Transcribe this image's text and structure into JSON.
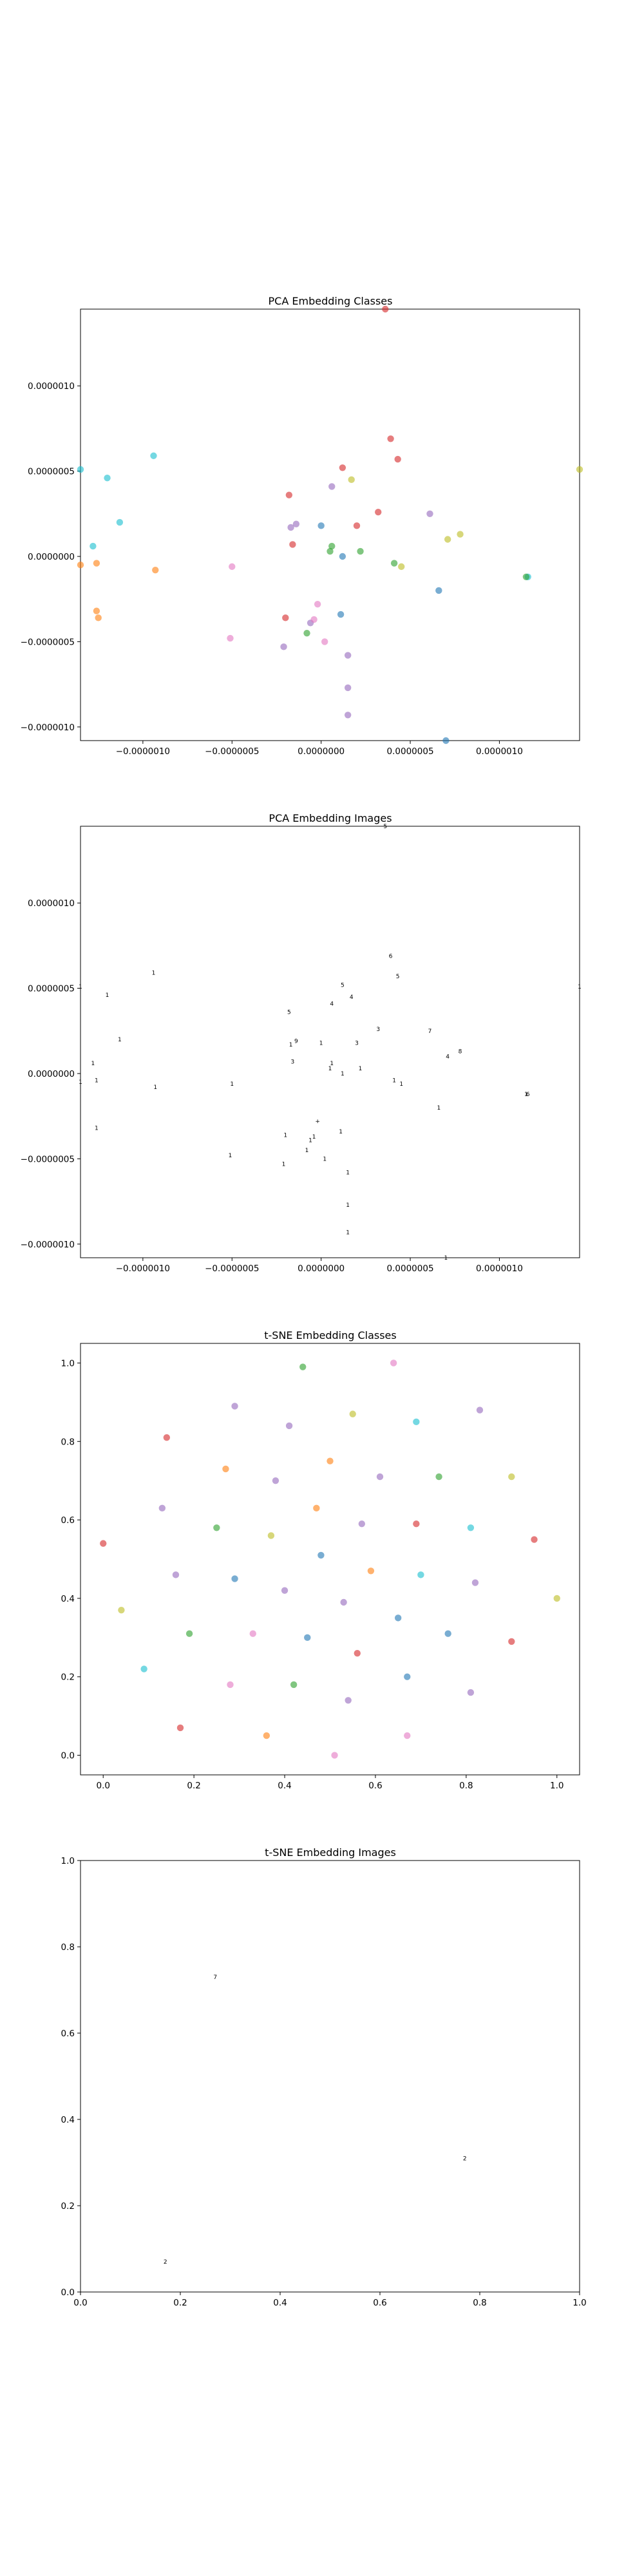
{
  "chart_data": [
    {
      "type": "scatter",
      "title": "PCA Embedding Classes",
      "xlim": [
        -1.35e-06,
        1.45e-06
      ],
      "ylim": [
        -1.08e-06,
        1.45e-06
      ],
      "xticks": [
        -1e-06,
        -5e-07,
        0.0,
        5e-07,
        1e-06
      ],
      "xtick_labels": [
        "−0.0000010",
        "−0.0000005",
        "0.0000000",
        "0.0000005",
        "0.0000010"
      ],
      "yticks": [
        -1e-06,
        -5e-07,
        0.0,
        5e-07,
        1e-06
      ],
      "ytick_labels": [
        "−0.0000010",
        "−0.0000005",
        "0.0000000",
        "0.0000005",
        "0.0000010"
      ],
      "points": [
        {
          "x": 3.6e-07,
          "y": 1.45e-06,
          "color": "#d62728"
        },
        {
          "x": 3.9e-07,
          "y": 6.9e-07,
          "color": "#d62728"
        },
        {
          "x": 4.3e-07,
          "y": 5.7e-07,
          "color": "#d62728"
        },
        {
          "x": 1.2e-07,
          "y": 5.2e-07,
          "color": "#d62728"
        },
        {
          "x": 1.7e-07,
          "y": 4.5e-07,
          "color": "#bcbd22"
        },
        {
          "x": 6e-08,
          "y": 4.1e-07,
          "color": "#9467bd"
        },
        {
          "x": -1.8e-07,
          "y": 3.6e-07,
          "color": "#d62728"
        },
        {
          "x": 3.2e-07,
          "y": 2.6e-07,
          "color": "#d62728"
        },
        {
          "x": 6.1e-07,
          "y": 2.5e-07,
          "color": "#9467bd"
        },
        {
          "x": -1.4e-07,
          "y": 1.9e-07,
          "color": "#9467bd"
        },
        {
          "x": -1.7e-07,
          "y": 1.7e-07,
          "color": "#9467bd"
        },
        {
          "x": 0.0,
          "y": 1.8e-07,
          "color": "#1f77b4"
        },
        {
          "x": 2e-07,
          "y": 1.8e-07,
          "color": "#d62728"
        },
        {
          "x": 7.8e-07,
          "y": 1.3e-07,
          "color": "#bcbd22"
        },
        {
          "x": 7.1e-07,
          "y": 1e-07,
          "color": "#bcbd22"
        },
        {
          "x": -1.6e-07,
          "y": 7e-08,
          "color": "#d62728"
        },
        {
          "x": 6e-08,
          "y": 6e-08,
          "color": "#2ca02c"
        },
        {
          "x": 5e-08,
          "y": 3e-08,
          "color": "#2ca02c"
        },
        {
          "x": 2.2e-07,
          "y": 3e-08,
          "color": "#2ca02c"
        },
        {
          "x": 1.2e-07,
          "y": 0.0,
          "color": "#1f77b4"
        },
        {
          "x": 4.1e-07,
          "y": -4e-08,
          "color": "#2ca02c"
        },
        {
          "x": 4.5e-07,
          "y": -6e-08,
          "color": "#bcbd22"
        },
        {
          "x": 1.16e-06,
          "y": -1.2e-07,
          "color": "#17becf"
        },
        {
          "x": 1.15e-06,
          "y": -1.2e-07,
          "color": "#2ca02c"
        },
        {
          "x": 6.6e-07,
          "y": -2e-07,
          "color": "#1f77b4"
        },
        {
          "x": -2e-08,
          "y": -2.8e-07,
          "color": "#e377c2"
        },
        {
          "x": 1.1e-07,
          "y": -3.4e-07,
          "color": "#1f77b4"
        },
        {
          "x": -2e-07,
          "y": -3.6e-07,
          "color": "#d62728"
        },
        {
          "x": -6e-08,
          "y": -3.9e-07,
          "color": "#9467bd"
        },
        {
          "x": -4e-08,
          "y": -3.7e-07,
          "color": "#e377c2"
        },
        {
          "x": -8e-08,
          "y": -4.5e-07,
          "color": "#2ca02c"
        },
        {
          "x": -5.1e-07,
          "y": -4.8e-07,
          "color": "#e377c2"
        },
        {
          "x": 2e-08,
          "y": -5e-07,
          "color": "#e377c2"
        },
        {
          "x": -2.1e-07,
          "y": -5.3e-07,
          "color": "#9467bd"
        },
        {
          "x": 1.5e-07,
          "y": -5.8e-07,
          "color": "#9467bd"
        },
        {
          "x": 1.5e-07,
          "y": -7.7e-07,
          "color": "#9467bd"
        },
        {
          "x": 1.5e-07,
          "y": -9.3e-07,
          "color": "#9467bd"
        },
        {
          "x": 7e-07,
          "y": -1.08e-06,
          "color": "#1f77b4"
        },
        {
          "x": -1.2e-06,
          "y": 4.6e-07,
          "color": "#17becf"
        },
        {
          "x": -9.4e-07,
          "y": 5.9e-07,
          "color": "#17becf"
        },
        {
          "x": -1.13e-06,
          "y": 2e-07,
          "color": "#17becf"
        },
        {
          "x": -1.28e-06,
          "y": 6e-08,
          "color": "#17becf"
        },
        {
          "x": -1.35e-06,
          "y": 5.1e-07,
          "color": "#17becf"
        },
        {
          "x": -1.26e-06,
          "y": -4e-08,
          "color": "#ff7f0e"
        },
        {
          "x": -1.35e-06,
          "y": -5e-08,
          "color": "#ff7f0e"
        },
        {
          "x": -1.26e-06,
          "y": -3.2e-07,
          "color": "#ff7f0e"
        },
        {
          "x": -1.25e-06,
          "y": -3.6e-07,
          "color": "#ff7f0e"
        },
        {
          "x": -9.3e-07,
          "y": -8e-08,
          "color": "#ff7f0e"
        },
        {
          "x": -5e-07,
          "y": -6e-08,
          "color": "#e377c2"
        },
        {
          "x": 1.45e-06,
          "y": 5.1e-07,
          "color": "#bcbd22"
        }
      ]
    },
    {
      "type": "scatter",
      "title": "PCA Embedding Images",
      "xlim": [
        -1.35e-06,
        1.45e-06
      ],
      "ylim": [
        -1.08e-06,
        1.45e-06
      ],
      "xticks": [
        -1e-06,
        -5e-07,
        0.0,
        5e-07,
        1e-06
      ],
      "xtick_labels": [
        "−0.0000010",
        "−0.0000005",
        "0.0000000",
        "0.0000005",
        "0.0000010"
      ],
      "yticks": [
        -1e-06,
        -5e-07,
        0.0,
        5e-07,
        1e-06
      ],
      "ytick_labels": [
        "−0.0000010",
        "−0.0000005",
        "0.0000000",
        "0.0000005",
        "0.0000010"
      ],
      "points": [
        {
          "x": 3.6e-07,
          "y": 1.45e-06,
          "glyph": "5"
        },
        {
          "x": 3.9e-07,
          "y": 6.9e-07,
          "glyph": "6"
        },
        {
          "x": 4.3e-07,
          "y": 5.7e-07,
          "glyph": "5"
        },
        {
          "x": 1.2e-07,
          "y": 5.2e-07,
          "glyph": "5"
        },
        {
          "x": 1.7e-07,
          "y": 4.5e-07,
          "glyph": "4"
        },
        {
          "x": 6e-08,
          "y": 4.1e-07,
          "glyph": "4"
        },
        {
          "x": -1.8e-07,
          "y": 3.6e-07,
          "glyph": "5"
        },
        {
          "x": 3.2e-07,
          "y": 2.6e-07,
          "glyph": "3"
        },
        {
          "x": 6.1e-07,
          "y": 2.5e-07,
          "glyph": "7"
        },
        {
          "x": -1.4e-07,
          "y": 1.9e-07,
          "glyph": "9"
        },
        {
          "x": -1.7e-07,
          "y": 1.7e-07,
          "glyph": "1"
        },
        {
          "x": 0.0,
          "y": 1.8e-07,
          "glyph": "1"
        },
        {
          "x": 2e-07,
          "y": 1.8e-07,
          "glyph": "3"
        },
        {
          "x": 7.8e-07,
          "y": 1.3e-07,
          "glyph": "8"
        },
        {
          "x": 7.1e-07,
          "y": 1e-07,
          "glyph": "4"
        },
        {
          "x": -1.6e-07,
          "y": 7e-08,
          "glyph": "3"
        },
        {
          "x": 6e-08,
          "y": 6e-08,
          "glyph": "1"
        },
        {
          "x": 5e-08,
          "y": 3e-08,
          "glyph": "1"
        },
        {
          "x": 2.2e-07,
          "y": 3e-08,
          "glyph": "1"
        },
        {
          "x": 1.2e-07,
          "y": 0.0,
          "glyph": "1"
        },
        {
          "x": 4.1e-07,
          "y": -4e-08,
          "glyph": "1"
        },
        {
          "x": 4.5e-07,
          "y": -6e-08,
          "glyph": "1"
        },
        {
          "x": 1.16e-06,
          "y": -1.2e-07,
          "glyph": "6"
        },
        {
          "x": 1.15e-06,
          "y": -1.2e-07,
          "glyph": "1"
        },
        {
          "x": 6.6e-07,
          "y": -2e-07,
          "glyph": "1"
        },
        {
          "x": -2e-08,
          "y": -2.8e-07,
          "glyph": "+"
        },
        {
          "x": 1.1e-07,
          "y": -3.4e-07,
          "glyph": "1"
        },
        {
          "x": -2e-07,
          "y": -3.6e-07,
          "glyph": "1"
        },
        {
          "x": -6e-08,
          "y": -3.9e-07,
          "glyph": "1"
        },
        {
          "x": -4e-08,
          "y": -3.7e-07,
          "glyph": "1"
        },
        {
          "x": -8e-08,
          "y": -4.5e-07,
          "glyph": "1"
        },
        {
          "x": -5.1e-07,
          "y": -4.8e-07,
          "glyph": "1"
        },
        {
          "x": 2e-08,
          "y": -5e-07,
          "glyph": "1"
        },
        {
          "x": -2.1e-07,
          "y": -5.3e-07,
          "glyph": "1"
        },
        {
          "x": 1.5e-07,
          "y": -5.8e-07,
          "glyph": "1"
        },
        {
          "x": 1.5e-07,
          "y": -7.7e-07,
          "glyph": "1"
        },
        {
          "x": 1.5e-07,
          "y": -9.3e-07,
          "glyph": "1"
        },
        {
          "x": 7e-07,
          "y": -1.08e-06,
          "glyph": "1"
        },
        {
          "x": -1.2e-06,
          "y": 4.6e-07,
          "glyph": "1"
        },
        {
          "x": -9.4e-07,
          "y": 5.9e-07,
          "glyph": "1"
        },
        {
          "x": -1.13e-06,
          "y": 2e-07,
          "glyph": "1"
        },
        {
          "x": -1.28e-06,
          "y": 6e-08,
          "glyph": "1"
        },
        {
          "x": -1.35e-06,
          "y": 5.1e-07,
          "glyph": "1"
        },
        {
          "x": -1.26e-06,
          "y": -4e-08,
          "glyph": "1"
        },
        {
          "x": -1.35e-06,
          "y": -5e-08,
          "glyph": "1"
        },
        {
          "x": -1.26e-06,
          "y": -3.2e-07,
          "glyph": "1"
        },
        {
          "x": -9.3e-07,
          "y": -8e-08,
          "glyph": "1"
        },
        {
          "x": -5e-07,
          "y": -6e-08,
          "glyph": "1"
        },
        {
          "x": 1.45e-06,
          "y": 5.1e-07,
          "glyph": "1"
        }
      ]
    },
    {
      "type": "scatter",
      "title": "t-SNE Embedding Classes",
      "xlim": [
        -0.05,
        1.05
      ],
      "ylim": [
        -0.05,
        1.05
      ],
      "xticks": [
        0.0,
        0.2,
        0.4,
        0.6,
        0.8,
        1.0
      ],
      "xtick_labels": [
        "0.0",
        "0.2",
        "0.4",
        "0.6",
        "0.8",
        "1.0"
      ],
      "yticks": [
        0.0,
        0.2,
        0.4,
        0.6,
        0.8,
        1.0
      ],
      "ytick_labels": [
        "0.0",
        "0.2",
        "0.4",
        "0.6",
        "0.8",
        "1.0"
      ],
      "points": [
        {
          "x": 0.44,
          "y": 0.99,
          "color": "#2ca02c"
        },
        {
          "x": 0.64,
          "y": 1.0,
          "color": "#e377c2"
        },
        {
          "x": 0.29,
          "y": 0.89,
          "color": "#9467bd"
        },
        {
          "x": 0.55,
          "y": 0.87,
          "color": "#bcbd22"
        },
        {
          "x": 0.83,
          "y": 0.88,
          "color": "#9467bd"
        },
        {
          "x": 0.69,
          "y": 0.85,
          "color": "#17becf"
        },
        {
          "x": 0.41,
          "y": 0.84,
          "color": "#9467bd"
        },
        {
          "x": 0.14,
          "y": 0.81,
          "color": "#d62728"
        },
        {
          "x": 0.5,
          "y": 0.75,
          "color": "#ff7f0e"
        },
        {
          "x": 0.27,
          "y": 0.73,
          "color": "#ff7f0e"
        },
        {
          "x": 0.61,
          "y": 0.71,
          "color": "#9467bd"
        },
        {
          "x": 0.74,
          "y": 0.71,
          "color": "#2ca02c"
        },
        {
          "x": 0.9,
          "y": 0.71,
          "color": "#bcbd22"
        },
        {
          "x": 0.38,
          "y": 0.7,
          "color": "#9467bd"
        },
        {
          "x": 0.13,
          "y": 0.63,
          "color": "#9467bd"
        },
        {
          "x": 0.47,
          "y": 0.63,
          "color": "#ff7f0e"
        },
        {
          "x": 0.57,
          "y": 0.59,
          "color": "#9467bd"
        },
        {
          "x": 0.69,
          "y": 0.59,
          "color": "#d62728"
        },
        {
          "x": 0.81,
          "y": 0.58,
          "color": "#17becf"
        },
        {
          "x": 0.25,
          "y": 0.58,
          "color": "#2ca02c"
        },
        {
          "x": 0.37,
          "y": 0.56,
          "color": "#bcbd22"
        },
        {
          "x": 0.95,
          "y": 0.55,
          "color": "#d62728"
        },
        {
          "x": 0.0,
          "y": 0.54,
          "color": "#d62728"
        },
        {
          "x": 0.48,
          "y": 0.51,
          "color": "#1f77b4"
        },
        {
          "x": 0.59,
          "y": 0.47,
          "color": "#ff7f0e"
        },
        {
          "x": 0.7,
          "y": 0.46,
          "color": "#17becf"
        },
        {
          "x": 0.16,
          "y": 0.46,
          "color": "#9467bd"
        },
        {
          "x": 0.29,
          "y": 0.45,
          "color": "#1f77b4"
        },
        {
          "x": 0.82,
          "y": 0.44,
          "color": "#9467bd"
        },
        {
          "x": 0.4,
          "y": 0.42,
          "color": "#9467bd"
        },
        {
          "x": 1.0,
          "y": 0.4,
          "color": "#bcbd22"
        },
        {
          "x": 0.53,
          "y": 0.39,
          "color": "#9467bd"
        },
        {
          "x": 0.04,
          "y": 0.37,
          "color": "#bcbd22"
        },
        {
          "x": 0.65,
          "y": 0.35,
          "color": "#1f77b4"
        },
        {
          "x": 0.19,
          "y": 0.31,
          "color": "#2ca02c"
        },
        {
          "x": 0.33,
          "y": 0.31,
          "color": "#e377c2"
        },
        {
          "x": 0.76,
          "y": 0.31,
          "color": "#1f77b4"
        },
        {
          "x": 0.45,
          "y": 0.3,
          "color": "#1f77b4"
        },
        {
          "x": 0.9,
          "y": 0.29,
          "color": "#d62728"
        },
        {
          "x": 0.56,
          "y": 0.26,
          "color": "#d62728"
        },
        {
          "x": 0.09,
          "y": 0.22,
          "color": "#17becf"
        },
        {
          "x": 0.67,
          "y": 0.2,
          "color": "#1f77b4"
        },
        {
          "x": 0.28,
          "y": 0.18,
          "color": "#e377c2"
        },
        {
          "x": 0.42,
          "y": 0.18,
          "color": "#2ca02c"
        },
        {
          "x": 0.81,
          "y": 0.16,
          "color": "#9467bd"
        },
        {
          "x": 0.54,
          "y": 0.14,
          "color": "#9467bd"
        },
        {
          "x": 0.17,
          "y": 0.07,
          "color": "#d62728"
        },
        {
          "x": 0.36,
          "y": 0.05,
          "color": "#ff7f0e"
        },
        {
          "x": 0.67,
          "y": 0.05,
          "color": "#e377c2"
        },
        {
          "x": 0.51,
          "y": 0.0,
          "color": "#e377c2"
        }
      ]
    },
    {
      "type": "scatter",
      "title": "t-SNE Embedding Images",
      "xlim": [
        0.0,
        1.0
      ],
      "ylim": [
        0.0,
        1.0
      ],
      "xticks": [
        0.0,
        0.2,
        0.4,
        0.6,
        0.8,
        1.0
      ],
      "xtick_labels": [
        "0.0",
        "0.2",
        "0.4",
        "0.6",
        "0.8",
        "1.0"
      ],
      "yticks": [
        0.0,
        0.2,
        0.4,
        0.6,
        0.8,
        1.0
      ],
      "ytick_labels": [
        "0.0",
        "0.2",
        "0.4",
        "0.6",
        "0.8",
        "1.0"
      ],
      "points": [
        {
          "x": 0.27,
          "y": 0.73,
          "glyph": "7"
        },
        {
          "x": 0.77,
          "y": 0.31,
          "glyph": "2"
        },
        {
          "x": 0.17,
          "y": 0.07,
          "glyph": "2"
        }
      ]
    }
  ]
}
